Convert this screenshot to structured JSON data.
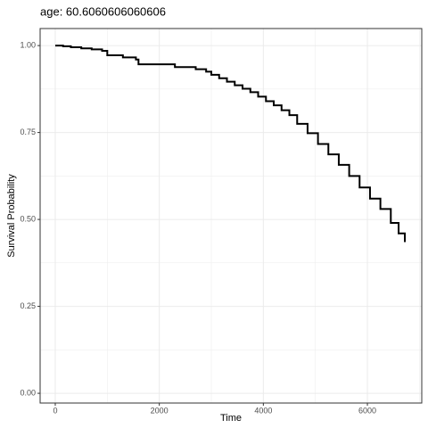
{
  "chart_data": {
    "type": "step",
    "title": "age: 60.6060606060606",
    "x_label": "Time",
    "y_label": "Survival Probability",
    "x": [
      0,
      150,
      300,
      500,
      700,
      900,
      1000,
      1300,
      1550,
      1600,
      2300,
      2700,
      2900,
      3000,
      3150,
      3300,
      3450,
      3600,
      3750,
      3900,
      4050,
      4200,
      4350,
      4500,
      4650,
      4850,
      5050,
      5250,
      5450,
      5650,
      5850,
      6050,
      6250,
      6450,
      6600,
      6720
    ],
    "series": [
      {
        "name": "survival",
        "color": "#000000",
        "values": [
          1.0,
          0.998,
          0.995,
          0.992,
          0.989,
          0.985,
          0.972,
          0.966,
          0.96,
          0.946,
          0.938,
          0.932,
          0.925,
          0.916,
          0.906,
          0.896,
          0.886,
          0.876,
          0.866,
          0.853,
          0.84,
          0.828,
          0.814,
          0.8,
          0.775,
          0.748,
          0.717,
          0.687,
          0.657,
          0.625,
          0.592,
          0.56,
          0.53,
          0.49,
          0.46,
          0.435
        ]
      }
    ],
    "xlim": [
      -291,
      7045
    ],
    "ylim": [
      -0.028,
      1.049
    ],
    "xticks": [
      0,
      2000,
      4000,
      6000
    ],
    "yticks": [
      {
        "value": 0,
        "label": "0.00"
      },
      {
        "value": 0.25,
        "label": "0.25"
      },
      {
        "value": 0.5,
        "label": "0.50"
      },
      {
        "value": 0.75,
        "label": "0.75"
      },
      {
        "value": 1,
        "label": "1.00"
      }
    ],
    "x_minor_ticks": [
      1000,
      3000,
      5000,
      7000
    ],
    "y_minor_ticks": [
      0.125,
      0.375,
      0.625,
      0.875
    ],
    "grid": true
  }
}
